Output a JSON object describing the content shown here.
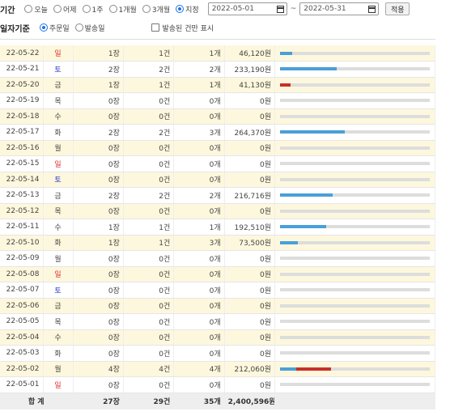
{
  "filter": {
    "period_label": "기간",
    "period_options": [
      "오늘",
      "어제",
      "1주",
      "1개월",
      "3개월",
      "지정"
    ],
    "period_selected": 5,
    "date_from": "2022-05-01",
    "date_to": "2022-05-31",
    "tilde": "~",
    "apply_label": "적용",
    "basis_label": "일자기준",
    "basis_options": [
      "주문일",
      "발송일"
    ],
    "basis_selected": 0,
    "only_shipped_label": "발송된 건만 표시",
    "only_shipped_checked": false
  },
  "colors": {
    "bar_blue": "#4a9fd8",
    "bar_red": "#c8302a",
    "bar_track": "#dddddd",
    "row_alt": "#fdf8dd",
    "saturday": "#2a37c8",
    "sunday": "#e03030"
  },
  "rows": [
    {
      "date": "22-05-22",
      "day": "일",
      "sheets": "1장",
      "cases": "1건",
      "units": "1개",
      "amount": "46,120원",
      "bar": [
        {
          "fill": 0.08,
          "color": "blue"
        }
      ]
    },
    {
      "date": "22-05-21",
      "day": "토",
      "sheets": "2장",
      "cases": "2건",
      "units": "2개",
      "amount": "233,190원",
      "bar": [
        {
          "fill": 0.38,
          "color": "blue"
        }
      ]
    },
    {
      "date": "22-05-20",
      "day": "금",
      "sheets": "1장",
      "cases": "1건",
      "units": "1개",
      "amount": "41,130원",
      "bar": [
        {
          "fill": 0.07,
          "color": "red"
        }
      ]
    },
    {
      "date": "22-05-19",
      "day": "목",
      "sheets": "0장",
      "cases": "0건",
      "units": "0개",
      "amount": "0원",
      "bar": []
    },
    {
      "date": "22-05-18",
      "day": "수",
      "sheets": "0장",
      "cases": "0건",
      "units": "0개",
      "amount": "0원",
      "bar": []
    },
    {
      "date": "22-05-17",
      "day": "화",
      "sheets": "2장",
      "cases": "2건",
      "units": "3개",
      "amount": "264,370원",
      "bar": [
        {
          "fill": 0.43,
          "color": "blue"
        }
      ]
    },
    {
      "date": "22-05-16",
      "day": "월",
      "sheets": "0장",
      "cases": "0건",
      "units": "0개",
      "amount": "0원",
      "bar": []
    },
    {
      "date": "22-05-15",
      "day": "일",
      "sheets": "0장",
      "cases": "0건",
      "units": "0개",
      "amount": "0원",
      "bar": []
    },
    {
      "date": "22-05-14",
      "day": "토",
      "sheets": "0장",
      "cases": "0건",
      "units": "0개",
      "amount": "0원",
      "bar": []
    },
    {
      "date": "22-05-13",
      "day": "금",
      "sheets": "2장",
      "cases": "2건",
      "units": "2개",
      "amount": "216,716원",
      "bar": [
        {
          "fill": 0.35,
          "color": "blue"
        }
      ]
    },
    {
      "date": "22-05-12",
      "day": "목",
      "sheets": "0장",
      "cases": "0건",
      "units": "0개",
      "amount": "0원",
      "bar": []
    },
    {
      "date": "22-05-11",
      "day": "수",
      "sheets": "1장",
      "cases": "1건",
      "units": "1개",
      "amount": "192,510원",
      "bar": [
        {
          "fill": 0.31,
          "color": "blue"
        }
      ]
    },
    {
      "date": "22-05-10",
      "day": "화",
      "sheets": "1장",
      "cases": "1건",
      "units": "3개",
      "amount": "73,500원",
      "bar": [
        {
          "fill": 0.12,
          "color": "blue"
        }
      ]
    },
    {
      "date": "22-05-09",
      "day": "월",
      "sheets": "0장",
      "cases": "0건",
      "units": "0개",
      "amount": "0원",
      "bar": []
    },
    {
      "date": "22-05-08",
      "day": "일",
      "sheets": "0장",
      "cases": "0건",
      "units": "0개",
      "amount": "0원",
      "bar": []
    },
    {
      "date": "22-05-07",
      "day": "토",
      "sheets": "0장",
      "cases": "0건",
      "units": "0개",
      "amount": "0원",
      "bar": []
    },
    {
      "date": "22-05-06",
      "day": "금",
      "sheets": "0장",
      "cases": "0건",
      "units": "0개",
      "amount": "0원",
      "bar": []
    },
    {
      "date": "22-05-05",
      "day": "목",
      "sheets": "0장",
      "cases": "0건",
      "units": "0개",
      "amount": "0원",
      "bar": []
    },
    {
      "date": "22-05-04",
      "day": "수",
      "sheets": "0장",
      "cases": "0건",
      "units": "0개",
      "amount": "0원",
      "bar": []
    },
    {
      "date": "22-05-03",
      "day": "화",
      "sheets": "0장",
      "cases": "0건",
      "units": "0개",
      "amount": "0원",
      "bar": []
    },
    {
      "date": "22-05-02",
      "day": "월",
      "sheets": "4장",
      "cases": "4건",
      "units": "4개",
      "amount": "212,060원",
      "bar": [
        {
          "fill": 0.11,
          "color": "blue"
        },
        {
          "fill": 0.23,
          "color": "red"
        }
      ]
    },
    {
      "date": "22-05-01",
      "day": "일",
      "sheets": "0장",
      "cases": "0건",
      "units": "0개",
      "amount": "0원",
      "bar": []
    }
  ],
  "total": {
    "label": "합 계",
    "sheets": "27장",
    "cases": "29건",
    "units": "35개",
    "amount": "2,400,596원"
  }
}
